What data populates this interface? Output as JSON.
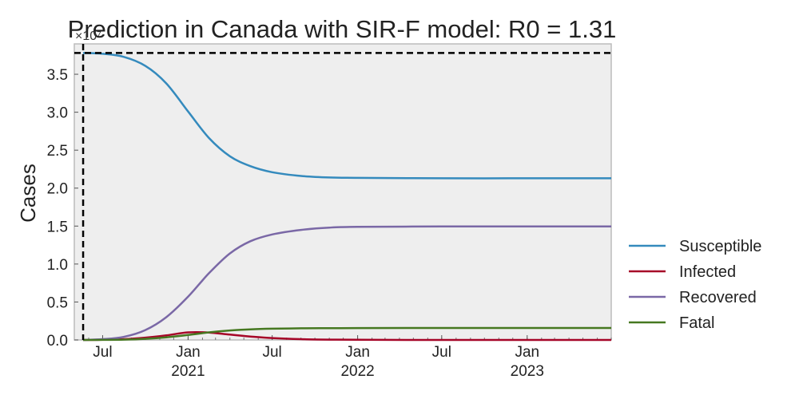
{
  "chart_data": {
    "type": "line",
    "title": "Prediction in Canada with SIR-F model: R0 = 1.31",
    "ylabel": "Cases",
    "xlabel": "",
    "y_offset_label": "×10⁷",
    "xlim": [
      "2020-05-01",
      "2023-07-01"
    ],
    "ylim": [
      0,
      3.9
    ],
    "y_scale_multiplier": 10000000,
    "y_ticks": [
      0.0,
      0.5,
      1.0,
      1.5,
      2.0,
      2.5,
      3.0,
      3.5
    ],
    "y_tick_labels": [
      "0.0",
      "0.5",
      "1.0",
      "1.5",
      "2.0",
      "2.5",
      "3.0",
      "3.5"
    ],
    "x_ticks": [
      {
        "date": "2020-07-01",
        "label": "Jul",
        "year": ""
      },
      {
        "date": "2021-01-01",
        "label": "Jan",
        "year": "2021"
      },
      {
        "date": "2021-07-01",
        "label": "Jul",
        "year": ""
      },
      {
        "date": "2022-01-01",
        "label": "Jan",
        "year": "2022"
      },
      {
        "date": "2022-07-01",
        "label": "Jul",
        "year": ""
      },
      {
        "date": "2023-01-01",
        "label": "Jan",
        "year": "2023"
      }
    ],
    "reference_lines": {
      "horizontal_y": 3.78,
      "vertical_date": "2020-05-20"
    },
    "grid": false,
    "legend_position": "outside-right",
    "series": [
      {
        "name": "Susceptible",
        "color": "#348ABD",
        "points": [
          [
            "2020-05-20",
            3.78
          ],
          [
            "2020-07-01",
            3.77
          ],
          [
            "2020-08-15",
            3.73
          ],
          [
            "2020-10-01",
            3.61
          ],
          [
            "2020-11-15",
            3.38
          ],
          [
            "2021-01-01",
            3.01
          ],
          [
            "2021-02-15",
            2.66
          ],
          [
            "2021-04-01",
            2.42
          ],
          [
            "2021-05-15",
            2.29
          ],
          [
            "2021-07-01",
            2.21
          ],
          [
            "2021-09-01",
            2.16
          ],
          [
            "2021-11-01",
            2.14
          ],
          [
            "2022-01-01",
            2.135
          ],
          [
            "2022-07-01",
            2.13
          ],
          [
            "2023-01-01",
            2.13
          ],
          [
            "2023-07-01",
            2.13
          ]
        ]
      },
      {
        "name": "Infected",
        "color": "#A60628",
        "points": [
          [
            "2020-05-20",
            0.0
          ],
          [
            "2020-07-01",
            0.002
          ],
          [
            "2020-08-15",
            0.01
          ],
          [
            "2020-10-01",
            0.03
          ],
          [
            "2020-11-15",
            0.06
          ],
          [
            "2021-01-01",
            0.1
          ],
          [
            "2021-02-15",
            0.098
          ],
          [
            "2021-04-01",
            0.07
          ],
          [
            "2021-05-15",
            0.045
          ],
          [
            "2021-07-01",
            0.025
          ],
          [
            "2021-09-01",
            0.01
          ],
          [
            "2021-11-01",
            0.004
          ],
          [
            "2022-01-01",
            0.002
          ],
          [
            "2022-07-01",
            0.0
          ],
          [
            "2023-01-01",
            0.0
          ],
          [
            "2023-07-01",
            0.0
          ]
        ]
      },
      {
        "name": "Recovered",
        "color": "#7A68A6",
        "points": [
          [
            "2020-05-20",
            0.0
          ],
          [
            "2020-07-01",
            0.01
          ],
          [
            "2020-08-15",
            0.04
          ],
          [
            "2020-10-01",
            0.13
          ],
          [
            "2020-11-15",
            0.3
          ],
          [
            "2021-01-01",
            0.57
          ],
          [
            "2021-02-15",
            0.88
          ],
          [
            "2021-04-01",
            1.14
          ],
          [
            "2021-05-15",
            1.3
          ],
          [
            "2021-07-01",
            1.39
          ],
          [
            "2021-09-01",
            1.45
          ],
          [
            "2021-11-01",
            1.48
          ],
          [
            "2022-01-01",
            1.49
          ],
          [
            "2022-07-01",
            1.495
          ],
          [
            "2023-01-01",
            1.495
          ],
          [
            "2023-07-01",
            1.495
          ]
        ]
      },
      {
        "name": "Fatal",
        "color": "#467821",
        "points": [
          [
            "2020-05-20",
            0.0
          ],
          [
            "2020-07-01",
            0.001
          ],
          [
            "2020-08-15",
            0.004
          ],
          [
            "2020-10-01",
            0.015
          ],
          [
            "2020-11-15",
            0.035
          ],
          [
            "2021-01-01",
            0.065
          ],
          [
            "2021-02-15",
            0.1
          ],
          [
            "2021-04-01",
            0.125
          ],
          [
            "2021-05-15",
            0.14
          ],
          [
            "2021-07-01",
            0.148
          ],
          [
            "2021-09-01",
            0.153
          ],
          [
            "2021-11-01",
            0.155
          ],
          [
            "2022-01-01",
            0.157
          ],
          [
            "2022-07-01",
            0.158
          ],
          [
            "2023-01-01",
            0.158
          ],
          [
            "2023-07-01",
            0.158
          ]
        ]
      }
    ]
  }
}
